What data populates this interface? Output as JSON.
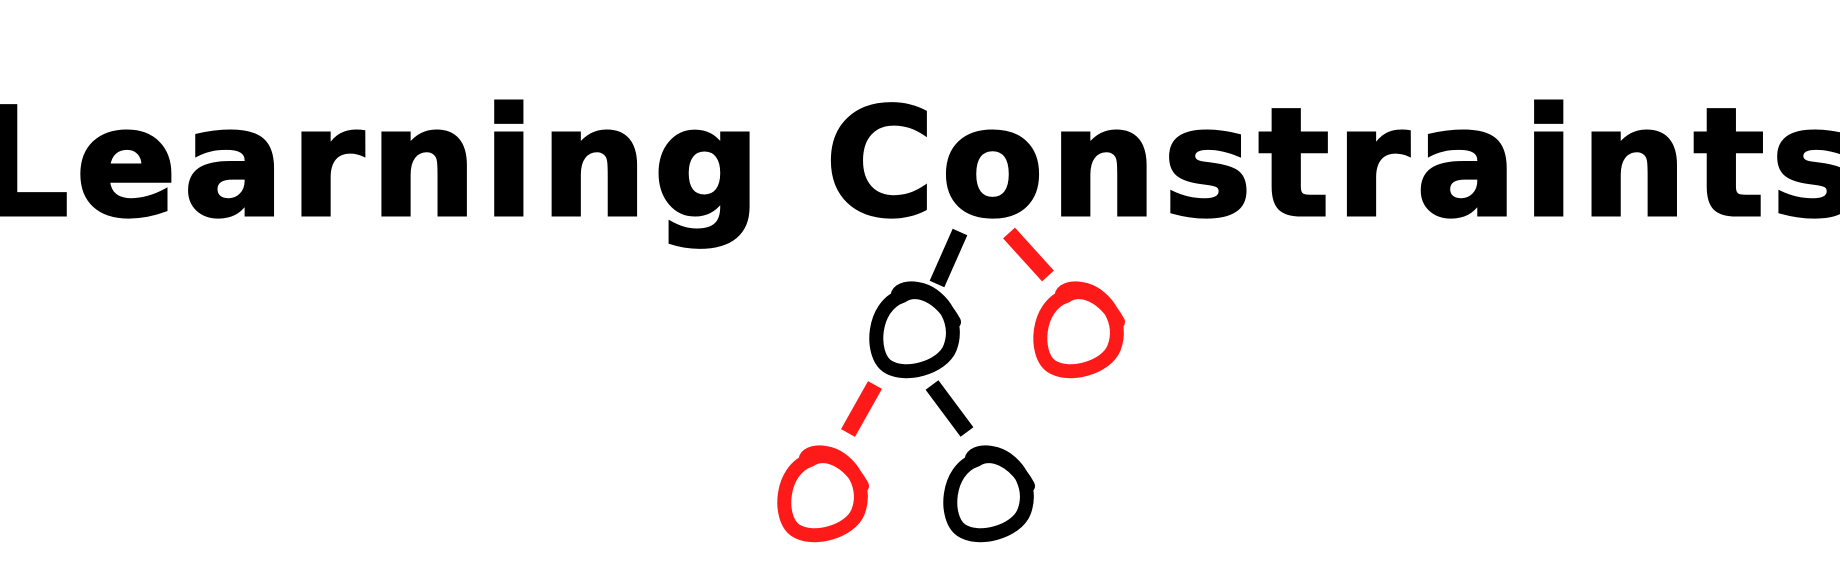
{
  "logo": {
    "title": "Learning Constraints",
    "colors": {
      "ink": "#000000",
      "accent": "#ff1a1a",
      "background": "#ffffff"
    },
    "tree": {
      "root": "o",
      "children": [
        {
          "label": "o",
          "color": "ink",
          "children": [
            {
              "label": "o",
              "color": "accent"
            },
            {
              "label": "o",
              "color": "ink"
            }
          ]
        },
        {
          "label": "o",
          "color": "accent"
        }
      ]
    }
  }
}
